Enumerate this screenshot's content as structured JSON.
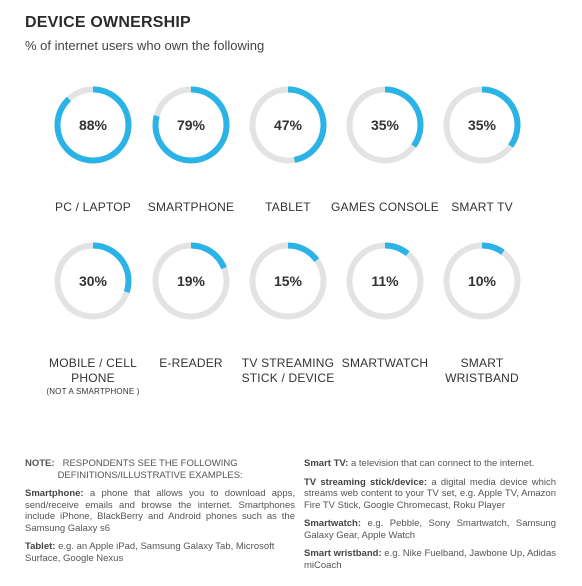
{
  "title": "DEVICE OWNERSHIP",
  "subtitle": "% of internet users who own the following",
  "colors": {
    "accent": "#29b3e6",
    "track": "#e3e3e3"
  },
  "chart_data": {
    "type": "donut",
    "title": "DEVICE OWNERSHIP",
    "subtitle": "% of internet users who own the following",
    "unit": "%",
    "items": [
      {
        "category": "PC / LAPTOP",
        "value": 88,
        "label": "88%"
      },
      {
        "category": "SMARTPHONE",
        "value": 79,
        "label": "79%"
      },
      {
        "category": "TABLET",
        "value": 47,
        "label": "47%"
      },
      {
        "category": "GAMES CONSOLE",
        "value": 35,
        "label": "35%"
      },
      {
        "category": "SMART TV",
        "value": 35,
        "label": "35%"
      },
      {
        "category": "MOBILE / CELL PHONE",
        "note": "(NOT A SMARTPHONE )",
        "value": 30,
        "label": "30%"
      },
      {
        "category": "E-READER",
        "value": 19,
        "label": "19%"
      },
      {
        "category": "TV STREAMING STICK / DEVICE",
        "value": 15,
        "label": "15%"
      },
      {
        "category": "SMARTWATCH",
        "value": 11,
        "label": "11%"
      },
      {
        "category": "SMART WRISTBAND",
        "value": 10,
        "label": "10%"
      }
    ]
  },
  "labels": {
    "r1": [
      "PC / LAPTOP",
      "SMARTPHONE",
      "TABLET",
      "GAMES CONSOLE",
      "SMART TV"
    ],
    "r2a": "MOBILE / CELL",
    "r2b": "PHONE",
    "r2note": "(NOT A SMARTPHONE )",
    "ereader": "E-READER",
    "tvs1": "TV STREAMING",
    "tvs2": "STICK / DEVICE",
    "swatch": "SMARTWATCH",
    "sw1": "SMART",
    "sw2": "WRISTBAND"
  },
  "notes": {
    "note_label": "NOTE:",
    "note_line1": "RESPONDENTS SEE THE FOLLOWING",
    "note_line2": "DEFINITIONS/ILLUSTRATIVE EXAMPLES:",
    "smartphone_term": "Smartphone:",
    "smartphone_text": "a phone that allows you to download apps, send/receive emails and browse the internet. Smartphones include iPhone, BlackBerry and Android phones such as the Samsung Galaxy s6",
    "tablet_term": "Tablet:",
    "tablet_text": "e.g. an Apple iPad, Samsung Galaxy Tab, Microsoft Surface, Google Nexus",
    "smarttv_term": "Smart TV:",
    "smarttv_text": "a television that can connect to the internet.",
    "tvstick_term": "TV streaming stick/device:",
    "tvstick_text": "a digital media device which streams web content to your TV set, e.g. Apple TV, Amazon Fire TV Stick, Google Chromecast, Roku Player",
    "smartwatch_term": "Smartwatch:",
    "smartwatch_text": "e.g. Pebble, Sony Smartwatch, Samsung Galaxy Gear, Apple Watch",
    "wristband_term": "Smart wristband:",
    "wristband_text": "e.g. Nike Fuelband, Jawbone Up, Adidas miCoach"
  }
}
